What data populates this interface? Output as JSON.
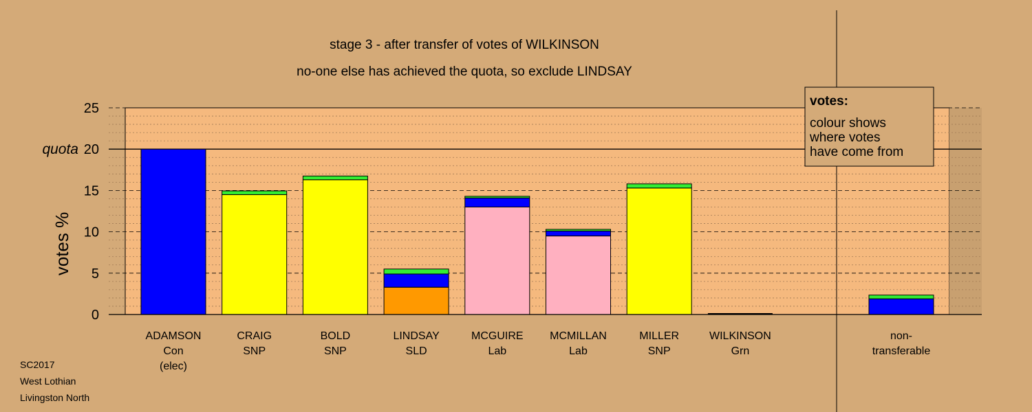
{
  "chart_data": {
    "type": "bar",
    "title": "stage 3 - after transfer of votes of WILKINSON",
    "subtitle": "no-one else has achieved the quota, so exclude LINDSAY",
    "ylabel": "votes %",
    "ylim": [
      0,
      25
    ],
    "yticks": [
      0,
      5,
      10,
      15,
      20,
      25
    ],
    "quota": 20,
    "quota_label": "quota",
    "grid": true,
    "categories": [
      {
        "name": "ADAMSON",
        "party": "Con",
        "note": "(elec)"
      },
      {
        "name": "CRAIG",
        "party": "SNP",
        "note": ""
      },
      {
        "name": "BOLD",
        "party": "SNP",
        "note": ""
      },
      {
        "name": "LINDSAY",
        "party": "SLD",
        "note": ""
      },
      {
        "name": "MCGUIRE",
        "party": "Lab",
        "note": ""
      },
      {
        "name": "MCMILLAN",
        "party": "Lab",
        "note": ""
      },
      {
        "name": "MILLER",
        "party": "SNP",
        "note": ""
      },
      {
        "name": "WILKINSON",
        "party": "Grn",
        "note": ""
      }
    ],
    "nontransferable": {
      "label_line1": "non-",
      "label_line2": "transferable",
      "segments": [
        {
          "source": "Con",
          "value": 1.9
        },
        {
          "source": "Grn",
          "value": 0.45
        }
      ]
    },
    "stacks": [
      [
        {
          "source": "Con",
          "value": 20.0
        }
      ],
      [
        {
          "source": "SNP",
          "value": 14.5
        },
        {
          "source": "Grn",
          "value": 0.45
        }
      ],
      [
        {
          "source": "SNP",
          "value": 16.3
        },
        {
          "source": "Grn",
          "value": 0.45
        }
      ],
      [
        {
          "source": "SLD",
          "value": 3.3
        },
        {
          "source": "Con",
          "value": 1.6
        },
        {
          "source": "Grn",
          "value": 0.6
        }
      ],
      [
        {
          "source": "Lab",
          "value": 13.0
        },
        {
          "source": "Con",
          "value": 1.1
        },
        {
          "source": "Grn",
          "value": 0.2
        }
      ],
      [
        {
          "source": "Lab",
          "value": 9.5
        },
        {
          "source": "Con",
          "value": 0.6
        },
        {
          "source": "Grn",
          "value": 0.2
        }
      ],
      [
        {
          "source": "SNP",
          "value": 15.3
        },
        {
          "source": "Grn",
          "value": 0.5
        }
      ],
      []
    ],
    "colors": {
      "Con": "#0000ff",
      "SNP": "#ffff00",
      "SLD": "#ff9900",
      "Lab": "#ffb0c0",
      "Grn": "#33ee33",
      "background": "#d4aa78",
      "plot_area": "#f5b97e"
    }
  },
  "legend": {
    "heading": "votes:",
    "line1": "colour shows",
    "line2": "where votes",
    "line3": "have come from"
  },
  "footer": {
    "line1": "SC2017",
    "line2": "West Lothian",
    "line3": "Livingston North"
  }
}
